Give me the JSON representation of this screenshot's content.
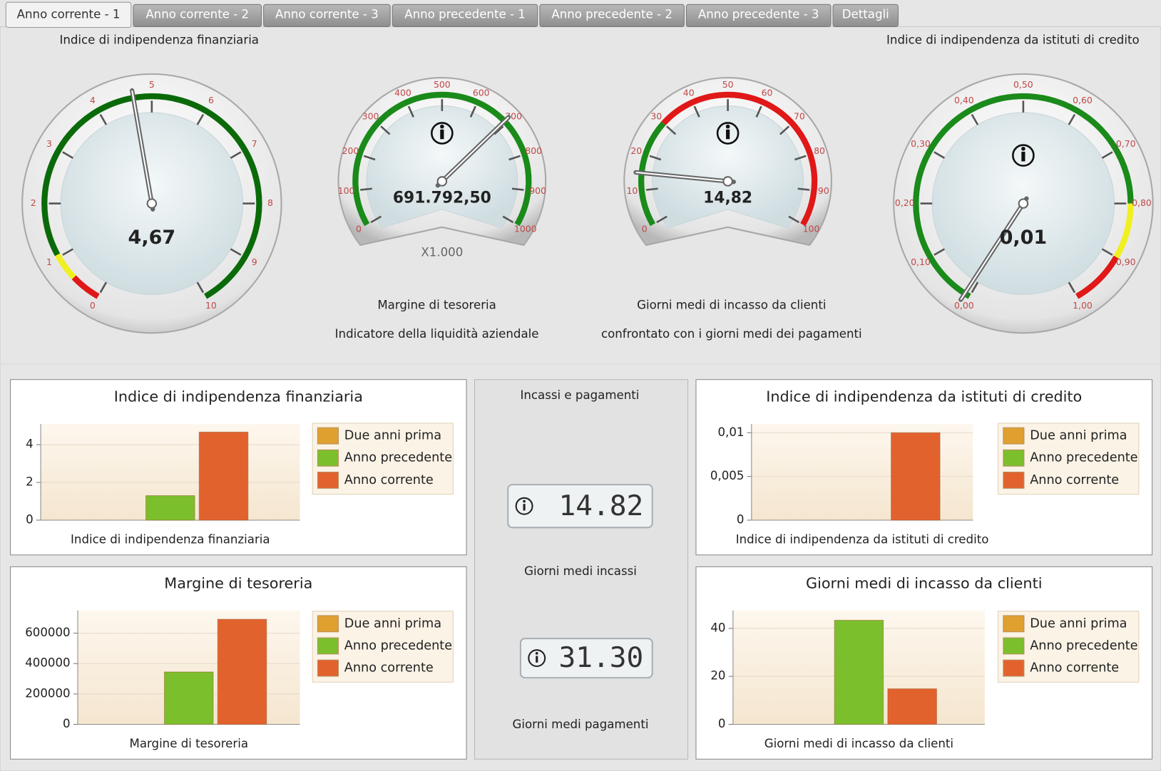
{
  "tabs": [
    "Anno corrente - 1",
    "Anno corrente - 2",
    "Anno corrente - 3",
    "Anno precedente - 1",
    "Anno precedente - 2",
    "Anno precedente - 3",
    "Dettagli"
  ],
  "active_tab": 0,
  "gauges": [
    {
      "title": "Indice di indipendenza finanziaria",
      "value": 4.67,
      "value_label": "4,67",
      "lim": [
        0,
        10
      ],
      "ticks": [
        0,
        1,
        2,
        3,
        4,
        5,
        6,
        7,
        8,
        9,
        10
      ],
      "bands": [
        {
          "from": 0,
          "to": 0.55,
          "color": "#e01818"
        },
        {
          "from": 0.55,
          "to": 1.05,
          "color": "#f0f020"
        },
        {
          "from": 1.05,
          "to": 10,
          "color": "#0a6a0a"
        }
      ]
    },
    {
      "title": "Margine di tesoreria",
      "subtitle": "Indicatore della liquidità aziendale",
      "value": 691.7925,
      "value_label": "691.792,50",
      "unit": "X1.000",
      "lim": [
        0,
        1000
      ],
      "ticks": [
        0,
        100,
        200,
        300,
        400,
        500,
        600,
        700,
        800,
        900,
        1000
      ],
      "bands": [
        {
          "from": 0,
          "to": 1000,
          "color": "#1a8a1a"
        }
      ]
    },
    {
      "title": "Giorni medi di incasso da clienti",
      "subtitle": "confrontato con i giorni medi dei pagamenti",
      "value": 14.82,
      "value_label": "14,82",
      "lim": [
        0,
        100
      ],
      "ticks": [
        0,
        10,
        20,
        30,
        40,
        50,
        60,
        70,
        80,
        90,
        100
      ],
      "bands": [
        {
          "from": 0,
          "to": 30,
          "color": "#1a8a1a"
        },
        {
          "from": 30,
          "to": 100,
          "color": "#e01818"
        }
      ]
    },
    {
      "title": "Indice di indipendenza da istituti di credito",
      "value": 0.01,
      "value_label": "0,01",
      "lim": [
        0,
        1
      ],
      "ticks": [
        {
          "value": 0,
          "label": "0,00"
        },
        {
          "value": 0.1,
          "label": "0,10"
        },
        {
          "value": 0.2,
          "label": "0,20"
        },
        {
          "value": 0.3,
          "label": "0,30"
        },
        {
          "value": 0.4,
          "label": "0,40"
        },
        {
          "value": 0.5,
          "label": "0,50"
        },
        {
          "value": 0.6,
          "label": "0,60"
        },
        {
          "value": 0.7,
          "label": "0,70"
        },
        {
          "value": 0.8,
          "label": "0,80"
        },
        {
          "value": 0.9,
          "label": "0,90"
        },
        {
          "value": 1,
          "label": "1,00"
        }
      ],
      "bands": [
        {
          "from": 0,
          "to": 0.8,
          "color": "#1a8a1a"
        },
        {
          "from": 0.8,
          "to": 0.9,
          "color": "#f0f020"
        },
        {
          "from": 0.9,
          "to": 1,
          "color": "#e01818"
        }
      ]
    }
  ],
  "digital": {
    "title": "Incassi e pagamenti",
    "displays": [
      {
        "label": "Giorni medi incassi",
        "value": 14.82,
        "value_label": "14.82"
      },
      {
        "label": "Giorni medi pagamenti",
        "value": 31.3,
        "value_label": "31.30"
      }
    ]
  },
  "chart_data": [
    {
      "type": "bar",
      "title": "Indice di indipendenza finanziaria",
      "categories": [
        "Indice di indipendenza finanziaria"
      ],
      "series": [
        {
          "name": "Due anni prima",
          "color": "#e0a030",
          "values": [
            null
          ]
        },
        {
          "name": "Anno precedente",
          "color": "#7cbf2c",
          "values": [
            1.3
          ]
        },
        {
          "name": "Anno corrente",
          "color": "#e2622e",
          "values": [
            4.67
          ]
        }
      ],
      "ylim": [
        0,
        5.1
      ],
      "yticks": [
        0,
        2,
        4
      ]
    },
    {
      "type": "bar",
      "title": "Margine di tesoreria",
      "categories": [
        "Margine di tesoreria"
      ],
      "series": [
        {
          "name": "Due anni prima",
          "color": "#e0a030",
          "values": [
            null
          ]
        },
        {
          "name": "Anno precedente",
          "color": "#7cbf2c",
          "values": [
            345000
          ]
        },
        {
          "name": "Anno corrente",
          "color": "#e2622e",
          "values": [
            691792.5
          ]
        }
      ],
      "ylim": [
        0,
        750000
      ],
      "yticks": [
        0,
        200000,
        400000,
        600000
      ]
    },
    {
      "type": "bar",
      "title": "Indice di indipendenza da istituti di credito",
      "categories": [
        "Indice di indipendenza da istituti di credito"
      ],
      "series": [
        {
          "name": "Due anni prima",
          "color": "#e0a030",
          "values": [
            null
          ]
        },
        {
          "name": "Anno precedente",
          "color": "#7cbf2c",
          "values": [
            null
          ]
        },
        {
          "name": "Anno corrente",
          "color": "#e2622e",
          "values": [
            0.01
          ]
        }
      ],
      "ylim": [
        0,
        0.011
      ],
      "yticks": [
        0,
        {
          "value": 0.005,
          "label": "0,005"
        },
        {
          "value": 0.01,
          "label": "0,01"
        }
      ]
    },
    {
      "type": "bar",
      "title": "Giorni medi di incasso da clienti",
      "categories": [
        "Giorni medi di incasso da clienti"
      ],
      "series": [
        {
          "name": "Due anni prima",
          "color": "#e0a030",
          "values": [
            null
          ]
        },
        {
          "name": "Anno precedente",
          "color": "#7cbf2c",
          "values": [
            43.4
          ]
        },
        {
          "name": "Anno corrente",
          "color": "#e2622e",
          "values": [
            14.82
          ]
        }
      ],
      "ylim": [
        0,
        47.5
      ],
      "yticks": [
        0,
        20,
        40
      ]
    }
  ]
}
